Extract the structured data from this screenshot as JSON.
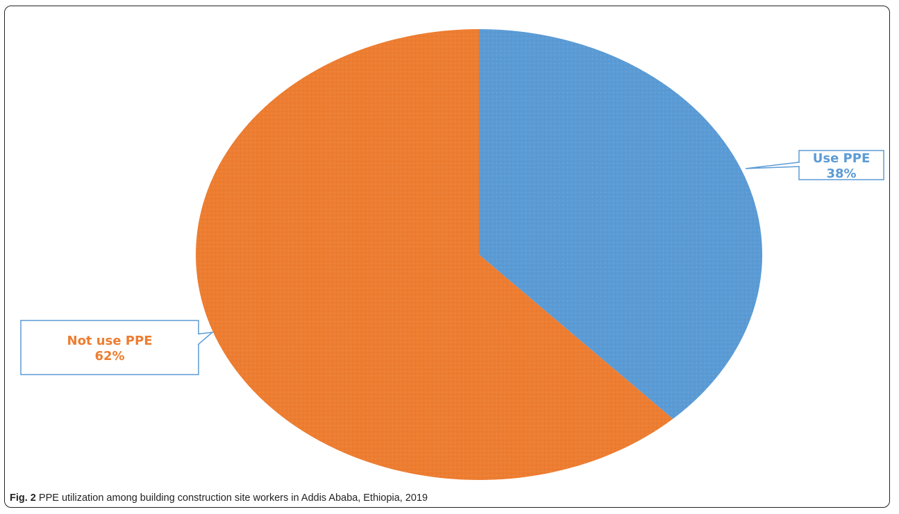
{
  "chart_data": {
    "type": "pie",
    "slices": [
      {
        "label": "Use PPE",
        "value": 38,
        "value_label": "38%",
        "color": "#5b9bd5"
      },
      {
        "label": "Not use PPE",
        "value": 62,
        "value_label": "62%",
        "color": "#ed7d31"
      }
    ],
    "legend": "none",
    "callout_border_color": "#5b9bd5"
  },
  "caption": {
    "label": "Fig. 2",
    "text": "PPE utilization among building construction site workers in Addis Ababa, Ethiopia, 2019"
  }
}
